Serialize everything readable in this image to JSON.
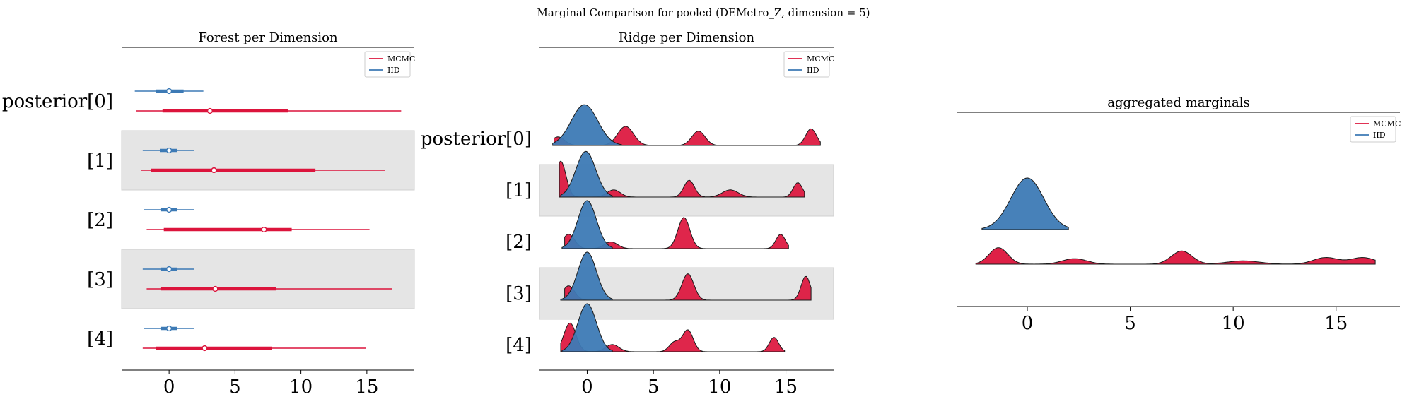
{
  "figure": {
    "suptitle": "Marginal Comparison for pooled (DEMetro_Z, dimension = 5)"
  },
  "colors": {
    "mcmc": "#dc143c",
    "iid": "#3d7ab5",
    "band": "#e5e5e5",
    "axis": "#000000"
  },
  "chart_data": [
    {
      "type": "forest",
      "title": "Forest per Dimension",
      "xlabel": "",
      "ylabel": "",
      "xlim": [
        -3.6,
        18.6
      ],
      "xticks": [
        0,
        5,
        10,
        15
      ],
      "xtick_labels": [
        "0",
        "5",
        "10",
        "15"
      ],
      "categories": [
        "posterior[0]",
        "[1]",
        "[2]",
        "[3]",
        "[4]"
      ],
      "legend": [
        "MCMC",
        "IID"
      ],
      "legend_position": "upper right",
      "series": [
        {
          "name": "MCMC",
          "center": [
            3.1,
            3.4,
            7.2,
            3.5,
            2.7
          ],
          "hdi_full": [
            [
              -2.5,
              17.6
            ],
            [
              -2.1,
              16.4
            ],
            [
              -1.7,
              15.2
            ],
            [
              -1.7,
              16.9
            ],
            [
              -2.0,
              14.9
            ]
          ],
          "iqr": [
            [
              -0.5,
              9.0
            ],
            [
              -1.4,
              11.1
            ],
            [
              -0.4,
              9.3
            ],
            [
              -0.6,
              8.1
            ],
            [
              -1.0,
              7.8
            ]
          ]
        },
        {
          "name": "IID",
          "center": [
            0.0,
            0.0,
            0.0,
            0.0,
            0.0
          ],
          "hdi_full": [
            [
              -2.6,
              2.6
            ],
            [
              -2.0,
              1.9
            ],
            [
              -1.9,
              1.9
            ],
            [
              -2.0,
              1.9
            ],
            [
              -1.9,
              1.9
            ]
          ],
          "iqr": [
            [
              -1.0,
              1.1
            ],
            [
              -0.7,
              0.6
            ],
            [
              -0.6,
              0.6
            ],
            [
              -0.6,
              0.6
            ],
            [
              -0.6,
              0.6
            ]
          ]
        }
      ]
    },
    {
      "type": "ridge",
      "title": "Ridge per Dimension",
      "xlabel": "",
      "ylabel": "",
      "xlim": [
        -3.6,
        18.6
      ],
      "xticks": [
        0,
        5,
        10,
        15
      ],
      "xtick_labels": [
        "0",
        "5",
        "10",
        "15"
      ],
      "categories": [
        "posterior[0]",
        "[1]",
        "[2]",
        "[3]",
        "[4]"
      ],
      "legend": [
        "MCMC",
        "IID"
      ],
      "legend_position": "upper right",
      "series": [
        {
          "name": "MCMC",
          "range": [
            [
              -2.5,
              17.6
            ],
            [
              -2.1,
              16.4
            ],
            [
              -1.7,
              15.2
            ],
            [
              -1.7,
              16.9
            ],
            [
              -2.0,
              14.9
            ]
          ],
          "peaks": [
            [
              [
                -2.2,
                0.18,
                0.5
              ],
              [
                2.9,
                0.4,
                0.6
              ],
              [
                8.4,
                0.3,
                0.5
              ],
              [
                16.9,
                0.35,
                0.4
              ]
            ],
            [
              [
                -2.0,
                0.75,
                0.4
              ],
              [
                2.0,
                0.15,
                0.5
              ],
              [
                7.7,
                0.35,
                0.4
              ],
              [
                10.8,
                0.15,
                0.6
              ],
              [
                15.9,
                0.3,
                0.35
              ]
            ],
            [
              [
                -1.4,
                0.3,
                0.45
              ],
              [
                1.8,
                0.14,
                0.5
              ],
              [
                7.3,
                0.65,
                0.45
              ],
              [
                14.6,
                0.3,
                0.35
              ]
            ],
            [
              [
                -1.4,
                0.3,
                0.45
              ],
              [
                7.6,
                0.55,
                0.45
              ],
              [
                16.5,
                0.5,
                0.35
              ]
            ],
            [
              [
                -1.3,
                0.6,
                0.45
              ],
              [
                1.9,
                0.15,
                0.5
              ],
              [
                6.6,
                0.2,
                0.4
              ],
              [
                7.6,
                0.45,
                0.4
              ],
              [
                14.1,
                0.3,
                0.35
              ]
            ]
          ]
        },
        {
          "name": "IID",
          "range": [
            [
              -2.6,
              2.6
            ],
            [
              -2.0,
              1.9
            ],
            [
              -1.9,
              1.9
            ],
            [
              -2.0,
              1.9
            ],
            [
              -1.9,
              1.9
            ]
          ],
          "peaks": [
            [
              [
                -0.2,
                0.85,
                1.0
              ]
            ],
            [
              [
                -0.1,
                0.95,
                0.75
              ]
            ],
            [
              [
                0.0,
                1.0,
                0.7
              ]
            ],
            [
              [
                0.0,
                1.0,
                0.7
              ]
            ],
            [
              [
                0.0,
                1.0,
                0.7
              ]
            ]
          ]
        }
      ]
    },
    {
      "type": "ridge",
      "title": "aggregated marginals",
      "xlabel": "",
      "ylabel": "",
      "xlim": [
        -3.4,
        18.1
      ],
      "xticks": [
        0,
        5,
        10,
        15
      ],
      "xtick_labels": [
        "0",
        "5",
        "10",
        "15"
      ],
      "legend": [
        "MCMC",
        "IID"
      ],
      "legend_position": "upper right",
      "series": [
        {
          "name": "IID",
          "range": [
            -2.2,
            2.0
          ],
          "peaks": [
            [
              0.0,
              1.0,
              0.8
            ]
          ]
        },
        {
          "name": "MCMC",
          "range": [
            -2.5,
            16.9
          ],
          "peaks": [
            [
              -1.4,
              0.3,
              0.45
            ],
            [
              2.3,
              0.1,
              0.6
            ],
            [
              7.5,
              0.24,
              0.5
            ],
            [
              10.5,
              0.06,
              0.8
            ],
            [
              14.5,
              0.12,
              0.6
            ],
            [
              16.3,
              0.12,
              0.6
            ]
          ]
        }
      ]
    }
  ]
}
